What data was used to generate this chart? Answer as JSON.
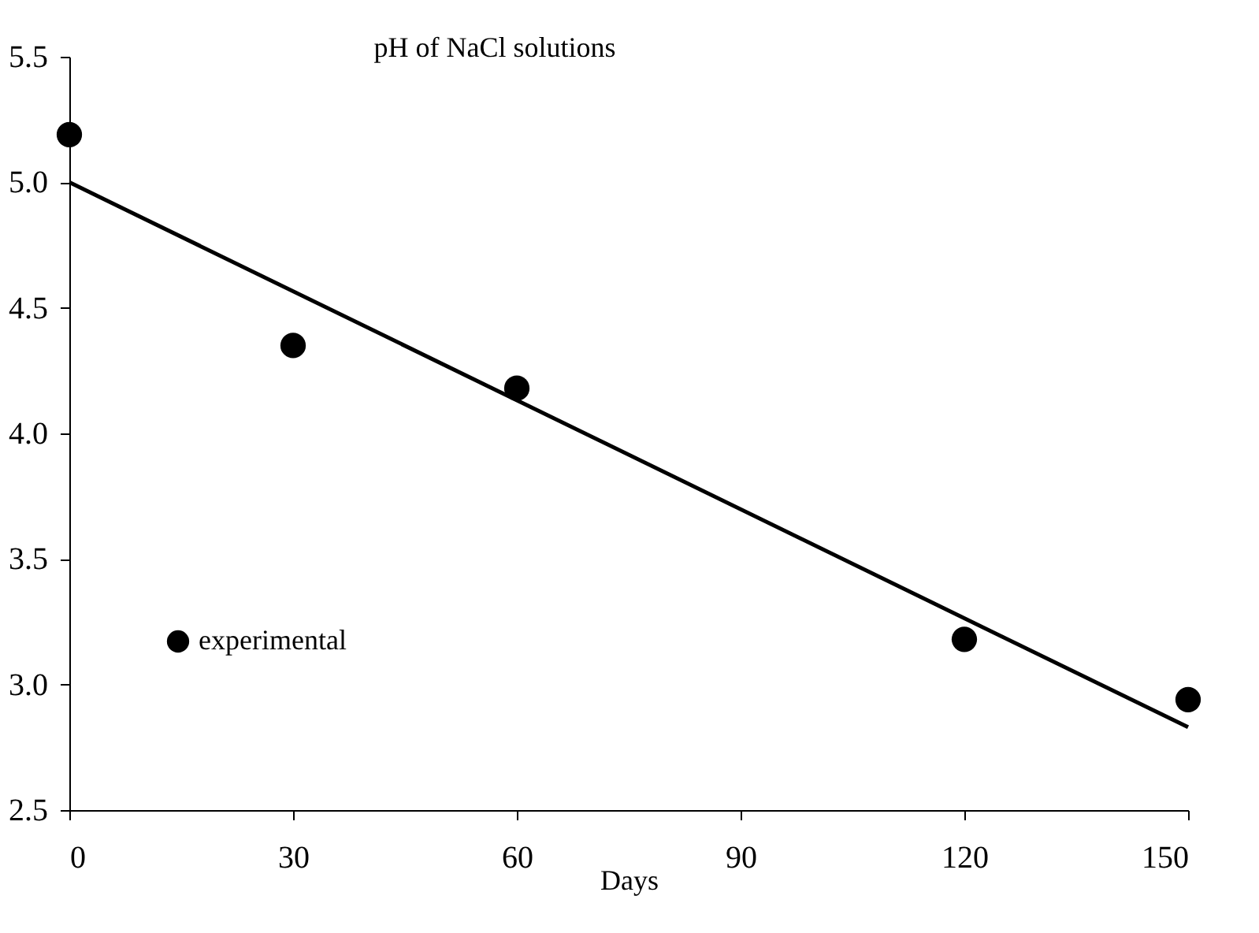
{
  "chart_data": {
    "type": "scatter",
    "title": "pH of NaCl solutions",
    "xlabel": "Days",
    "xlim": [
      0,
      150
    ],
    "xticks": [
      0,
      30,
      60,
      90,
      120,
      150
    ],
    "ylim": [
      2.5,
      5.5
    ],
    "yticks": [
      2.5,
      {
        "value": 3,
        "label": "3.0"
      },
      3.5,
      {
        "value": 4,
        "label": "4.0"
      },
      4.5,
      {
        "value": 5,
        "label": "5.0"
      },
      5.5
    ],
    "grid": false,
    "legend": "bottom left",
    "series": [
      {
        "name": "experimental",
        "marker": "circle",
        "color": "#000000",
        "x": [
          0,
          30,
          60,
          120,
          150
        ],
        "values": [
          5.19,
          4.35,
          4.18,
          3.18,
          2.94
        ]
      },
      {
        "type": "line",
        "marker": "none",
        "color": "#000000",
        "line_style": "solid",
        "x": [
          0,
          150
        ],
        "values": [
          5.0,
          2.83
        ]
      }
    ]
  }
}
